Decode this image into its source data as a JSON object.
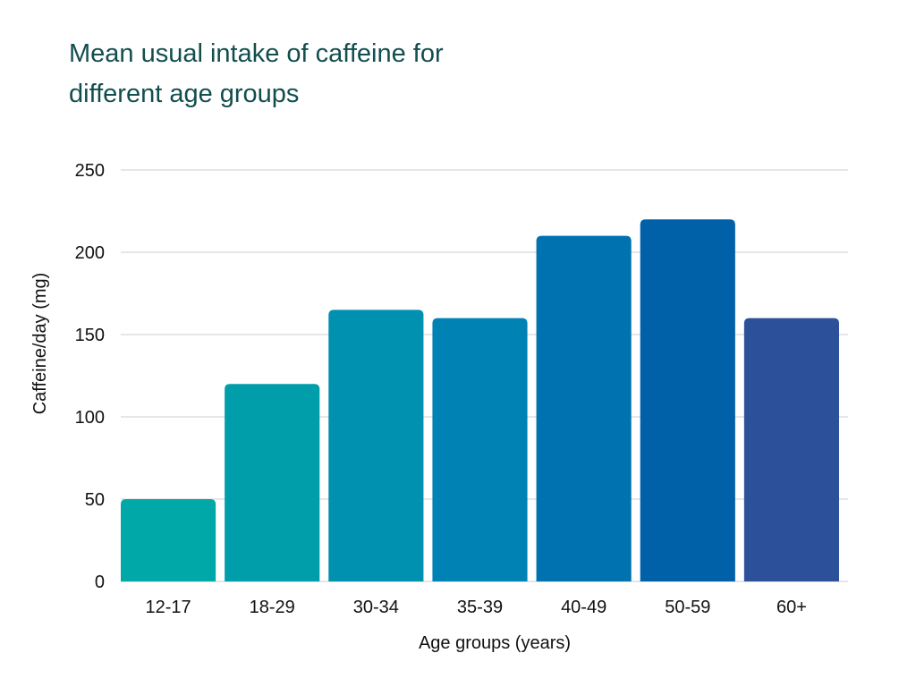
{
  "chart_data": {
    "type": "bar",
    "title": "Mean usual intake of caffeine for different age groups",
    "title_lines": [
      "Mean usual intake of caffeine for",
      "different age groups"
    ],
    "xlabel": "Age groups (years)",
    "ylabel": "Caffeine/day (mg)",
    "categories": [
      "12-17",
      "18-29",
      "30-34",
      "35-39",
      "40-49",
      "50-59",
      "60+"
    ],
    "values": [
      50,
      120,
      165,
      160,
      210,
      220,
      160
    ],
    "colors": [
      "#00a8a8",
      "#009dab",
      "#0090b0",
      "#0082b5",
      "#0072b0",
      "#0060a8",
      "#2d509a"
    ],
    "ylim": [
      0,
      250
    ],
    "yticks": [
      0,
      50,
      100,
      150,
      200,
      250
    ],
    "grid": true,
    "legend": "none"
  }
}
